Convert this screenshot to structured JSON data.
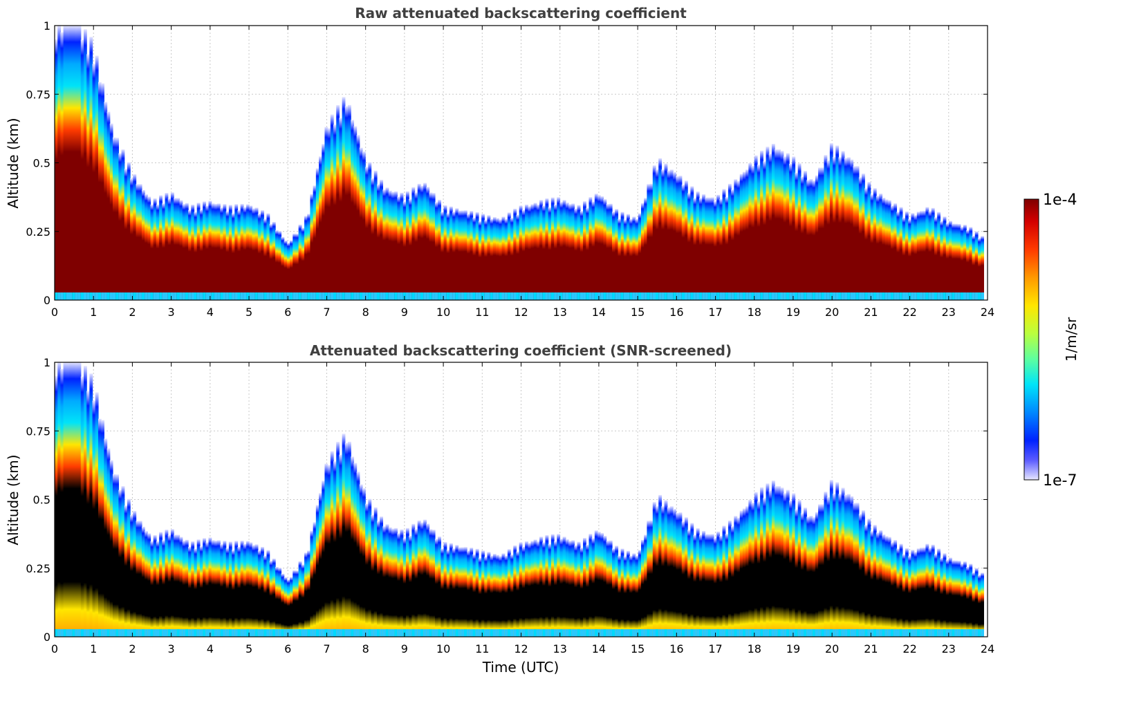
{
  "chart_data": [
    {
      "type": "heatmap",
      "title": "Raw attenuated backscattering coefficient",
      "ylabel": "Altitude (km)",
      "xlabel": "",
      "xlim": [
        0,
        24
      ],
      "ylim": [
        0,
        1
      ],
      "x_ticks": [
        "0",
        "1",
        "2",
        "3",
        "4",
        "5",
        "6",
        "7",
        "8",
        "9",
        "10",
        "11",
        "12",
        "13",
        "14",
        "15",
        "16",
        "17",
        "18",
        "19",
        "20",
        "21",
        "22",
        "23",
        "24"
      ],
      "y_ticks": [
        "0",
        "0.25",
        "0.5",
        "0.75",
        "1"
      ],
      "grid": true,
      "screened": false,
      "colormap": "jet",
      "color_scale": "log",
      "approx_layer_top_km": {
        "time_utc": [
          0,
          0.5,
          1,
          1.5,
          2,
          2.5,
          3,
          3.5,
          4,
          4.5,
          5,
          5.5,
          6,
          6.5,
          7,
          7.5,
          8,
          8.5,
          9,
          9.5,
          10,
          10.5,
          11,
          11.5,
          12,
          12.5,
          13,
          13.5,
          14,
          14.5,
          15,
          15.5,
          16,
          16.5,
          17,
          17.5,
          18,
          18.5,
          19,
          19.5,
          20,
          20.5,
          21,
          21.5,
          22,
          22.5,
          23,
          23.5,
          23.9
        ],
        "top_km": [
          1,
          1,
          0.9,
          0.6,
          0.45,
          0.35,
          0.38,
          0.33,
          0.35,
          0.33,
          0.34,
          0.3,
          0.2,
          0.3,
          0.62,
          0.72,
          0.5,
          0.4,
          0.37,
          0.42,
          0.33,
          0.32,
          0.3,
          0.29,
          0.33,
          0.35,
          0.36,
          0.33,
          0.38,
          0.31,
          0.29,
          0.5,
          0.45,
          0.38,
          0.36,
          0.42,
          0.5,
          0.55,
          0.5,
          0.42,
          0.55,
          0.5,
          0.4,
          0.35,
          0.3,
          0.33,
          0.28,
          0.26,
          0.22
        ]
      }
    },
    {
      "type": "heatmap",
      "title": "Attenuated backscattering coefficient (SNR-screened)",
      "ylabel": "Altitude (km)",
      "xlabel": "Time (UTC)",
      "xlim": [
        0,
        24
      ],
      "ylim": [
        0,
        1
      ],
      "x_ticks": [
        "0",
        "1",
        "2",
        "3",
        "4",
        "5",
        "6",
        "7",
        "8",
        "9",
        "10",
        "11",
        "12",
        "13",
        "14",
        "15",
        "16",
        "17",
        "18",
        "19",
        "20",
        "21",
        "22",
        "23",
        "24"
      ],
      "y_ticks": [
        "0",
        "0.25",
        "0.5",
        "0.75",
        "1"
      ],
      "grid": true,
      "screened": true,
      "colormap": "jet",
      "color_scale": "log",
      "approx_layer_top_km": {
        "time_utc": [
          0,
          0.5,
          1,
          1.5,
          2,
          2.5,
          3,
          3.5,
          4,
          4.5,
          5,
          5.5,
          6,
          6.5,
          7,
          7.5,
          8,
          8.5,
          9,
          9.5,
          10,
          10.5,
          11,
          11.5,
          12,
          12.5,
          13,
          13.5,
          14,
          14.5,
          15,
          15.5,
          16,
          16.5,
          17,
          17.5,
          18,
          18.5,
          19,
          19.5,
          20,
          20.5,
          21,
          21.5,
          22,
          22.5,
          23,
          23.5,
          23.9
        ],
        "top_km": [
          1,
          1,
          0.9,
          0.6,
          0.45,
          0.35,
          0.38,
          0.33,
          0.35,
          0.33,
          0.34,
          0.3,
          0.2,
          0.3,
          0.62,
          0.72,
          0.5,
          0.4,
          0.37,
          0.42,
          0.33,
          0.32,
          0.3,
          0.29,
          0.33,
          0.35,
          0.36,
          0.33,
          0.38,
          0.31,
          0.29,
          0.5,
          0.45,
          0.38,
          0.36,
          0.42,
          0.5,
          0.55,
          0.5,
          0.42,
          0.55,
          0.5,
          0.4,
          0.35,
          0.3,
          0.33,
          0.28,
          0.26,
          0.22
        ]
      }
    }
  ],
  "colorbar": {
    "max_label": "1e-4",
    "min_label": "1e-7",
    "unit": "1/m/sr",
    "colors": [
      "#7f0000",
      "#d40000",
      "#ff3b00",
      "#ff9a00",
      "#ffe600",
      "#b9ff3f",
      "#5dffa0",
      "#00e4f8",
      "#0088ff",
      "#0022ff",
      "#3b3bff",
      "#9a9aff",
      "#e6e6ff"
    ]
  }
}
